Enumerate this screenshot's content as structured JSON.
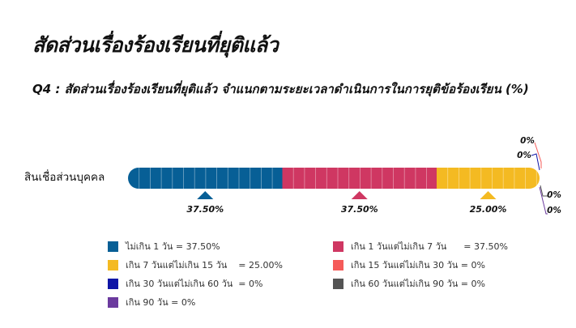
{
  "page": {
    "title": "สัดส่วนเรื่องร้องเรียนที่ยุติแล้ว",
    "subtitle": "Q4 : สัดส่วนเรื่องร้องเรียนที่ยุติแล้ว จำแนกตามระยะเวลาดำเนินการในการยุติข้อร้องเรียน (%)"
  },
  "chart_data": {
    "type": "bar",
    "orientation": "horizontal",
    "stacked": true,
    "categories": [
      "สินเชื่อส่วนบุคคล"
    ],
    "xlim": [
      0,
      100
    ],
    "grid": false,
    "legend_position": "bottom",
    "series": [
      {
        "name": "ไม่เกิน 1 วัน",
        "values": [
          37.5
        ],
        "label": "37.50%",
        "legend": "ไม่เกิน 1 วัน = 37.50%",
        "color": "#075F96"
      },
      {
        "name": "เกิน 1 วันแต่ไม่เกิน 7 วัน",
        "values": [
          37.5
        ],
        "label": "37.50%",
        "legend": "เกิน 1 วันแต่ไม่เกิน 7 วัน      = 37.50%",
        "color": "#CF3762"
      },
      {
        "name": "เกิน 7 วันแต่ไม่เกิน 15 วัน",
        "values": [
          25.0
        ],
        "label": "25.00%",
        "legend": "เกิน 7 วันแต่ไม่เกิน 15 วัน    = 25.00%",
        "color": "#F4BA22"
      },
      {
        "name": "เกิน 15 วันแต่ไม่เกิน 30 วัน",
        "values": [
          0
        ],
        "label": "0%",
        "legend": "เกิน 15 วันแต่ไม่เกิน 30 วัน = 0%",
        "color": "#F55B59"
      },
      {
        "name": "เกิน 30 วันแต่ไม่เกิน 60 วัน",
        "values": [
          0
        ],
        "label": "0%",
        "legend": "เกิน 30 วันแต่ไม่เกิน 60 วัน  = 0%",
        "color": "#0F15A6"
      },
      {
        "name": "เกิน 60 วันแต่ไม่เกิน 90 วัน",
        "values": [
          0
        ],
        "label": "0%",
        "legend": "เกิน 60 วันแต่ไม่เกิน 90 วัน = 0%",
        "color": "#545454"
      },
      {
        "name": "เกิน 90 วัน",
        "values": [
          0
        ],
        "label": "0%",
        "legend": "เกิน 90 วัน = 0%",
        "color": "#6B3A9E"
      }
    ]
  }
}
